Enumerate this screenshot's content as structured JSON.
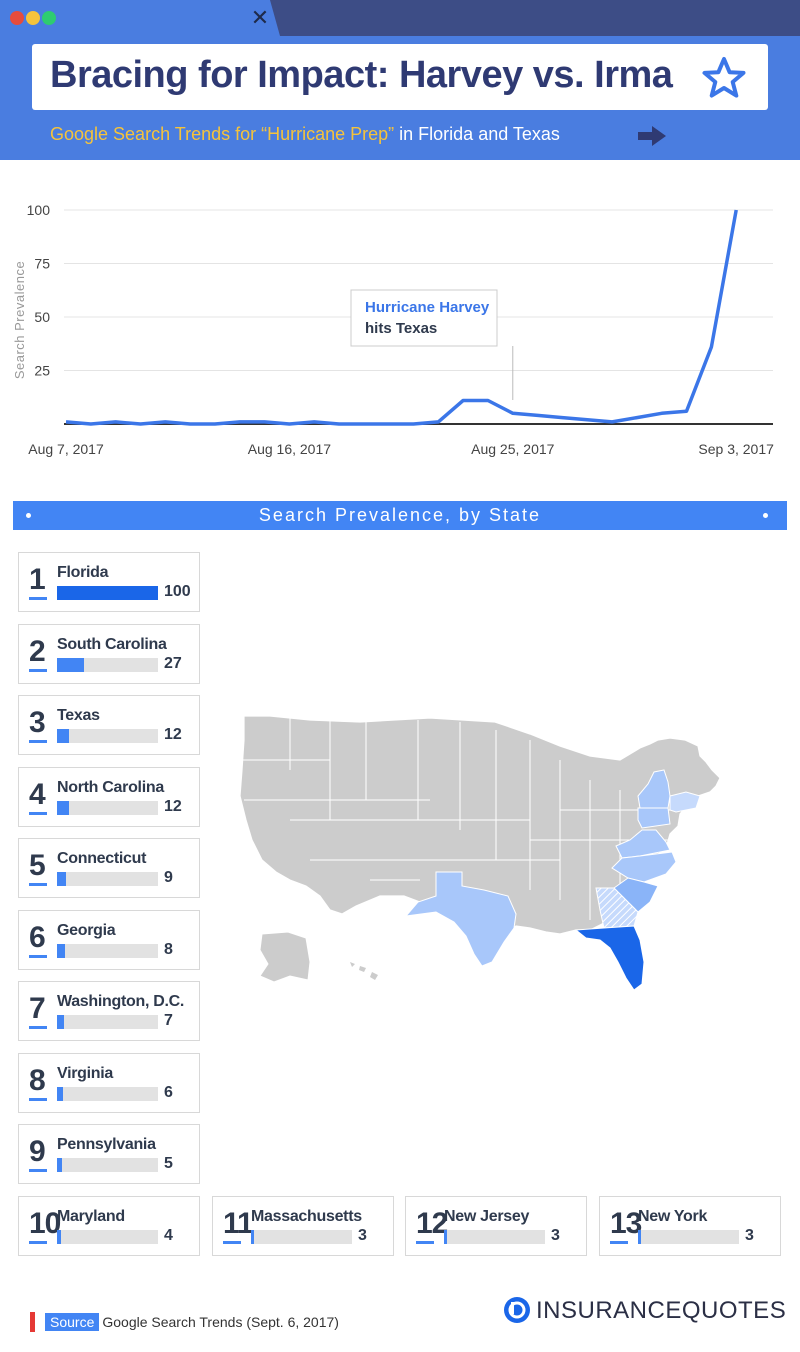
{
  "header": {
    "title": "Bracing for Impact: Harvey vs. Irma",
    "subtitle_highlight": "Google Search Trends for “Hurricane Prep”",
    "subtitle_rest": " in Florida and Texas",
    "close_icon": "✕"
  },
  "section": {
    "title": "Search Prevalence, by State"
  },
  "chart_data": [
    {
      "type": "line",
      "title": "",
      "ylabel": "Search Prevalence",
      "xlabel": "",
      "ylim": [
        0,
        100
      ],
      "yticks": [
        25,
        50,
        75,
        100
      ],
      "xticks": [
        "Aug 7, 2017",
        "Aug 16, 2017",
        "Aug 25, 2017",
        "Sep 3, 2017"
      ],
      "x_start": "Aug 7, 2017",
      "x_end": "Sep 4, 2017",
      "series": [
        {
          "color": "#3b76e8",
          "points": [
            [
              "Aug 7, 2017",
              1
            ],
            [
              "Aug 8, 2017",
              0
            ],
            [
              "Aug 9, 2017",
              1
            ],
            [
              "Aug 10, 2017",
              0
            ],
            [
              "Aug 11, 2017",
              1
            ],
            [
              "Aug 12, 2017",
              0
            ],
            [
              "Aug 13, 2017",
              0
            ],
            [
              "Aug 14, 2017",
              1
            ],
            [
              "Aug 15, 2017",
              1
            ],
            [
              "Aug 16, 2017",
              0
            ],
            [
              "Aug 17, 2017",
              1
            ],
            [
              "Aug 18, 2017",
              0
            ],
            [
              "Aug 19, 2017",
              0
            ],
            [
              "Aug 20, 2017",
              0
            ],
            [
              "Aug 21, 2017",
              0
            ],
            [
              "Aug 22, 2017",
              1
            ],
            [
              "Aug 23, 2017",
              11
            ],
            [
              "Aug 24, 2017",
              11
            ],
            [
              "Aug 25, 2017",
              5
            ],
            [
              "Aug 26, 2017",
              4
            ],
            [
              "Aug 27, 2017",
              3
            ],
            [
              "Aug 28, 2017",
              2
            ],
            [
              "Aug 29, 2017",
              1
            ],
            [
              "Aug 30, 2017",
              3
            ],
            [
              "Aug 31, 2017",
              5
            ],
            [
              "Sep 1, 2017",
              6
            ],
            [
              "Sep 2, 2017",
              36
            ],
            [
              "Sep 3, 2017",
              100
            ]
          ]
        }
      ],
      "annotation": {
        "date": "Aug 25, 2017",
        "text_highlight": "Hurricane Harvey",
        "text_rest": "hits Texas"
      },
      "grid": true
    },
    {
      "type": "bar",
      "title": "Search Prevalence, by State",
      "categories": [
        "Florida",
        "South Carolina",
        "Texas",
        "North Carolina",
        "Connecticut",
        "Georgia",
        "Washington, D.C.",
        "Virginia",
        "Pennsylvania",
        "Maryland",
        "Massachusetts",
        "New Jersey",
        "New York"
      ],
      "values": [
        100,
        27,
        12,
        12,
        9,
        8,
        7,
        6,
        5,
        4,
        3,
        3,
        3
      ],
      "ylim": [
        0,
        100
      ]
    }
  ],
  "rankings": [
    {
      "rank": "1",
      "state": "Florida",
      "value": "100",
      "pct": 100
    },
    {
      "rank": "2",
      "state": "South Carolina",
      "value": "27",
      "pct": 27
    },
    {
      "rank": "3",
      "state": "Texas",
      "value": "12",
      "pct": 12
    },
    {
      "rank": "4",
      "state": "North Carolina",
      "value": "12",
      "pct": 12
    },
    {
      "rank": "5",
      "state": "Connecticut",
      "value": "9",
      "pct": 9
    },
    {
      "rank": "6",
      "state": "Georgia",
      "value": "8",
      "pct": 8
    },
    {
      "rank": "7",
      "state": "Washington, D.C.",
      "value": "7",
      "pct": 7
    },
    {
      "rank": "8",
      "state": "Virginia",
      "value": "6",
      "pct": 6
    },
    {
      "rank": "9",
      "state": "Pennsylvania",
      "value": "5",
      "pct": 5
    },
    {
      "rank": "10",
      "state": "Maryland",
      "value": "4",
      "pct": 4
    },
    {
      "rank": "11",
      "state": "Massachusetts",
      "value": "3",
      "pct": 3
    },
    {
      "rank": "12",
      "state": "New Jersey",
      "value": "3",
      "pct": 3
    },
    {
      "rank": "13",
      "state": "New York",
      "value": "3",
      "pct": 3
    }
  ],
  "colors": {
    "header_bg": "#4a7de0",
    "chrome_bg": "#3d4d86",
    "accent": "#4285f4",
    "highlight_state": "#1a66e8",
    "line": "#3b76e8"
  },
  "footer": {
    "source_label": "Source",
    "source_text": "Google Search Trends (Sept. 6, 2017)",
    "brand": "INSURANCEQUOTES",
    "logo_icon": "insurancequotes-logo-icon"
  }
}
